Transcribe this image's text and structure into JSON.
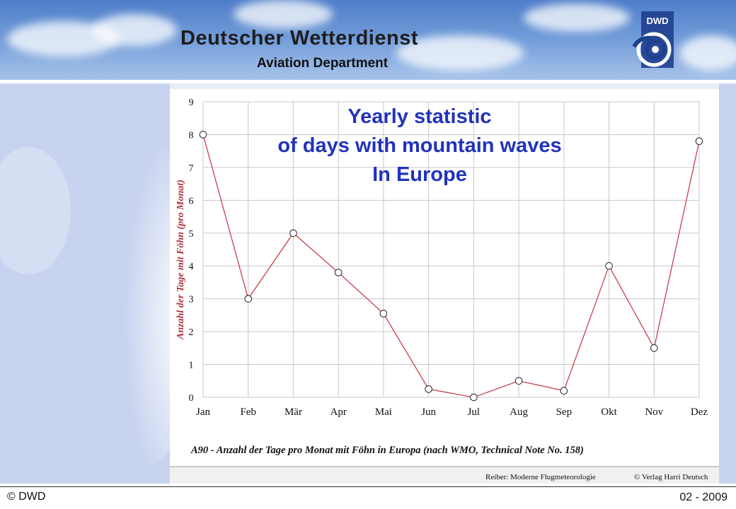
{
  "header": {
    "organization": "Deutscher Wetterdienst",
    "department": "Aviation Department",
    "logo_text": "DWD"
  },
  "footer": {
    "copyright": "© DWD",
    "date": "02 - 2009"
  },
  "colors": {
    "title": "#2233bb",
    "series_line": "#c8404e",
    "ylabel": "#b0303f",
    "side_panel": "#c8d3ef"
  },
  "chart_data": {
    "type": "line",
    "title_lines": [
      "Yearly statistic",
      "of days with mountain waves",
      "In Europe"
    ],
    "categories": [
      "Jan",
      "Feb",
      "Mär",
      "Apr",
      "Mai",
      "Jun",
      "Jul",
      "Aug",
      "Sep",
      "Okt",
      "Nov",
      "Dez"
    ],
    "series": [
      {
        "values": [
          8.0,
          3.0,
          5.0,
          3.8,
          2.55,
          0.25,
          0.0,
          0.5,
          0.2,
          4.0,
          1.5,
          7.8
        ]
      }
    ],
    "ylabel": "Anzahl der Tage mit Föhn (pro Monat)",
    "xlabel": "",
    "ylim": [
      0,
      9
    ],
    "yticks": [
      "0",
      "1",
      "2",
      "3",
      "4",
      "5",
      "6",
      "7",
      "8",
      "9"
    ],
    "grid": true,
    "caption": "A90 - Anzahl der Tage pro Monat mit Föhn in Europa (nach WMO, Technical Note No. 158)",
    "source_left": "Reiber: Moderne Flugmeteorologie",
    "source_right": "© Verlag Harri Deutsch"
  }
}
